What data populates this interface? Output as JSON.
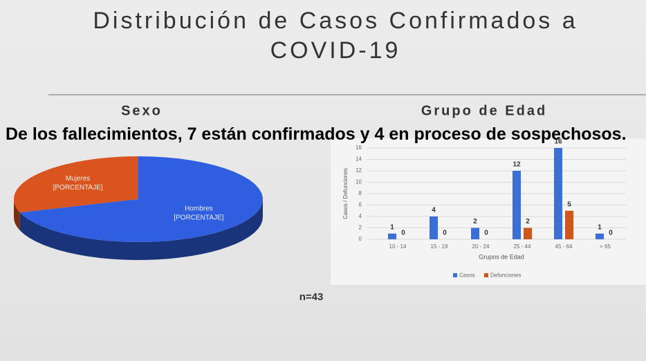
{
  "title": [
    "Distribución de Casos Confirmados a",
    "COVID-19"
  ],
  "caption": "De los fallecimientos, 7 están confirmados y 4 en proceso de sospechosos.",
  "note": "n=43",
  "chart_data": [
    {
      "type": "pie",
      "title": "Sexo",
      "categories": [
        "Mujeres",
        "Hombres"
      ],
      "values": [
        30,
        70
      ],
      "value_labels": [
        "[PORCENTAJE]",
        "[PORCENTAJE]"
      ],
      "colors": [
        "#d9541e",
        "#2f5fe0"
      ]
    },
    {
      "type": "bar",
      "title": "Grupo de Edad",
      "categories": [
        "10 - 14",
        "15 - 19",
        "20 - 24",
        "25 - 44",
        "45 - 64",
        "> 65"
      ],
      "series": [
        {
          "name": "Casos",
          "color": "#3a6fd8",
          "values": [
            1,
            4,
            2,
            12,
            16,
            1
          ]
        },
        {
          "name": "Defunciones",
          "color": "#d0561c",
          "values": [
            0,
            0,
            0,
            2,
            5,
            0
          ]
        }
      ],
      "ylim": [
        0,
        16
      ],
      "yticks": [
        0,
        2,
        4,
        6,
        8,
        10,
        12,
        14,
        16
      ],
      "xlabel": "Grupos de Edad",
      "ylabel": "Casos / Defunciones",
      "grid": true
    }
  ]
}
